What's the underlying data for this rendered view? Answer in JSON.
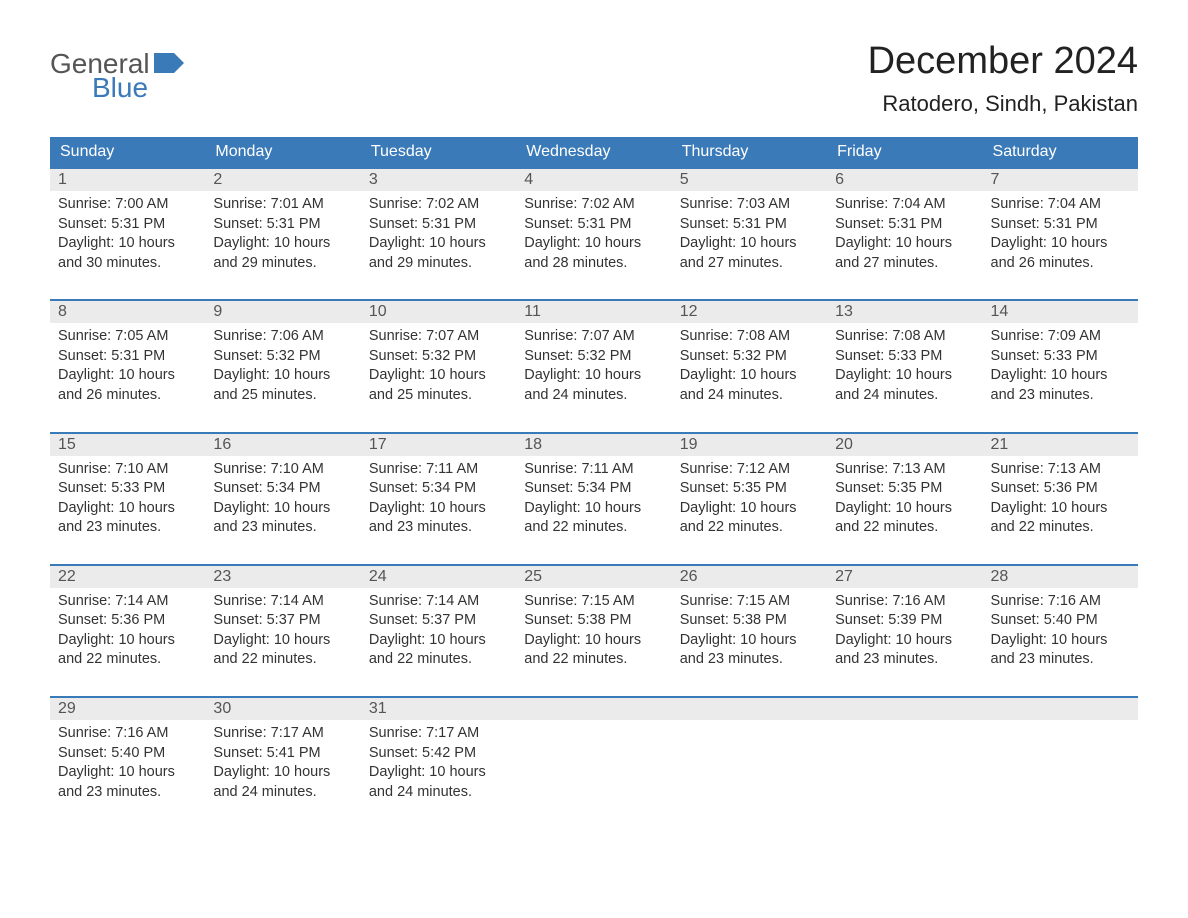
{
  "logo": {
    "general": "General",
    "blue": "Blue"
  },
  "title": "December 2024",
  "location": "Ratodero, Sindh, Pakistan",
  "weekdays": [
    "Sunday",
    "Monday",
    "Tuesday",
    "Wednesday",
    "Thursday",
    "Friday",
    "Saturday"
  ],
  "colors": {
    "header_bg": "#3b7ab8",
    "header_text": "#ffffff",
    "daynum_bg": "#ebebeb",
    "border_top": "#3b7ab8",
    "body_text": "#333333",
    "title_text": "#222222"
  },
  "days": [
    {
      "n": "1",
      "sunrise": "Sunrise: 7:00 AM",
      "sunset": "Sunset: 5:31 PM",
      "day1": "Daylight: 10 hours",
      "day2": "and 30 minutes."
    },
    {
      "n": "2",
      "sunrise": "Sunrise: 7:01 AM",
      "sunset": "Sunset: 5:31 PM",
      "day1": "Daylight: 10 hours",
      "day2": "and 29 minutes."
    },
    {
      "n": "3",
      "sunrise": "Sunrise: 7:02 AM",
      "sunset": "Sunset: 5:31 PM",
      "day1": "Daylight: 10 hours",
      "day2": "and 29 minutes."
    },
    {
      "n": "4",
      "sunrise": "Sunrise: 7:02 AM",
      "sunset": "Sunset: 5:31 PM",
      "day1": "Daylight: 10 hours",
      "day2": "and 28 minutes."
    },
    {
      "n": "5",
      "sunrise": "Sunrise: 7:03 AM",
      "sunset": "Sunset: 5:31 PM",
      "day1": "Daylight: 10 hours",
      "day2": "and 27 minutes."
    },
    {
      "n": "6",
      "sunrise": "Sunrise: 7:04 AM",
      "sunset": "Sunset: 5:31 PM",
      "day1": "Daylight: 10 hours",
      "day2": "and 27 minutes."
    },
    {
      "n": "7",
      "sunrise": "Sunrise: 7:04 AM",
      "sunset": "Sunset: 5:31 PM",
      "day1": "Daylight: 10 hours",
      "day2": "and 26 minutes."
    },
    {
      "n": "8",
      "sunrise": "Sunrise: 7:05 AM",
      "sunset": "Sunset: 5:31 PM",
      "day1": "Daylight: 10 hours",
      "day2": "and 26 minutes."
    },
    {
      "n": "9",
      "sunrise": "Sunrise: 7:06 AM",
      "sunset": "Sunset: 5:32 PM",
      "day1": "Daylight: 10 hours",
      "day2": "and 25 minutes."
    },
    {
      "n": "10",
      "sunrise": "Sunrise: 7:07 AM",
      "sunset": "Sunset: 5:32 PM",
      "day1": "Daylight: 10 hours",
      "day2": "and 25 minutes."
    },
    {
      "n": "11",
      "sunrise": "Sunrise: 7:07 AM",
      "sunset": "Sunset: 5:32 PM",
      "day1": "Daylight: 10 hours",
      "day2": "and 24 minutes."
    },
    {
      "n": "12",
      "sunrise": "Sunrise: 7:08 AM",
      "sunset": "Sunset: 5:32 PM",
      "day1": "Daylight: 10 hours",
      "day2": "and 24 minutes."
    },
    {
      "n": "13",
      "sunrise": "Sunrise: 7:08 AM",
      "sunset": "Sunset: 5:33 PM",
      "day1": "Daylight: 10 hours",
      "day2": "and 24 minutes."
    },
    {
      "n": "14",
      "sunrise": "Sunrise: 7:09 AM",
      "sunset": "Sunset: 5:33 PM",
      "day1": "Daylight: 10 hours",
      "day2": "and 23 minutes."
    },
    {
      "n": "15",
      "sunrise": "Sunrise: 7:10 AM",
      "sunset": "Sunset: 5:33 PM",
      "day1": "Daylight: 10 hours",
      "day2": "and 23 minutes."
    },
    {
      "n": "16",
      "sunrise": "Sunrise: 7:10 AM",
      "sunset": "Sunset: 5:34 PM",
      "day1": "Daylight: 10 hours",
      "day2": "and 23 minutes."
    },
    {
      "n": "17",
      "sunrise": "Sunrise: 7:11 AM",
      "sunset": "Sunset: 5:34 PM",
      "day1": "Daylight: 10 hours",
      "day2": "and 23 minutes."
    },
    {
      "n": "18",
      "sunrise": "Sunrise: 7:11 AM",
      "sunset": "Sunset: 5:34 PM",
      "day1": "Daylight: 10 hours",
      "day2": "and 22 minutes."
    },
    {
      "n": "19",
      "sunrise": "Sunrise: 7:12 AM",
      "sunset": "Sunset: 5:35 PM",
      "day1": "Daylight: 10 hours",
      "day2": "and 22 minutes."
    },
    {
      "n": "20",
      "sunrise": "Sunrise: 7:13 AM",
      "sunset": "Sunset: 5:35 PM",
      "day1": "Daylight: 10 hours",
      "day2": "and 22 minutes."
    },
    {
      "n": "21",
      "sunrise": "Sunrise: 7:13 AM",
      "sunset": "Sunset: 5:36 PM",
      "day1": "Daylight: 10 hours",
      "day2": "and 22 minutes."
    },
    {
      "n": "22",
      "sunrise": "Sunrise: 7:14 AM",
      "sunset": "Sunset: 5:36 PM",
      "day1": "Daylight: 10 hours",
      "day2": "and 22 minutes."
    },
    {
      "n": "23",
      "sunrise": "Sunrise: 7:14 AM",
      "sunset": "Sunset: 5:37 PM",
      "day1": "Daylight: 10 hours",
      "day2": "and 22 minutes."
    },
    {
      "n": "24",
      "sunrise": "Sunrise: 7:14 AM",
      "sunset": "Sunset: 5:37 PM",
      "day1": "Daylight: 10 hours",
      "day2": "and 22 minutes."
    },
    {
      "n": "25",
      "sunrise": "Sunrise: 7:15 AM",
      "sunset": "Sunset: 5:38 PM",
      "day1": "Daylight: 10 hours",
      "day2": "and 22 minutes."
    },
    {
      "n": "26",
      "sunrise": "Sunrise: 7:15 AM",
      "sunset": "Sunset: 5:38 PM",
      "day1": "Daylight: 10 hours",
      "day2": "and 23 minutes."
    },
    {
      "n": "27",
      "sunrise": "Sunrise: 7:16 AM",
      "sunset": "Sunset: 5:39 PM",
      "day1": "Daylight: 10 hours",
      "day2": "and 23 minutes."
    },
    {
      "n": "28",
      "sunrise": "Sunrise: 7:16 AM",
      "sunset": "Sunset: 5:40 PM",
      "day1": "Daylight: 10 hours",
      "day2": "and 23 minutes."
    },
    {
      "n": "29",
      "sunrise": "Sunrise: 7:16 AM",
      "sunset": "Sunset: 5:40 PM",
      "day1": "Daylight: 10 hours",
      "day2": "and 23 minutes."
    },
    {
      "n": "30",
      "sunrise": "Sunrise: 7:17 AM",
      "sunset": "Sunset: 5:41 PM",
      "day1": "Daylight: 10 hours",
      "day2": "and 24 minutes."
    },
    {
      "n": "31",
      "sunrise": "Sunrise: 7:17 AM",
      "sunset": "Sunset: 5:42 PM",
      "day1": "Daylight: 10 hours",
      "day2": "and 24 minutes."
    }
  ]
}
